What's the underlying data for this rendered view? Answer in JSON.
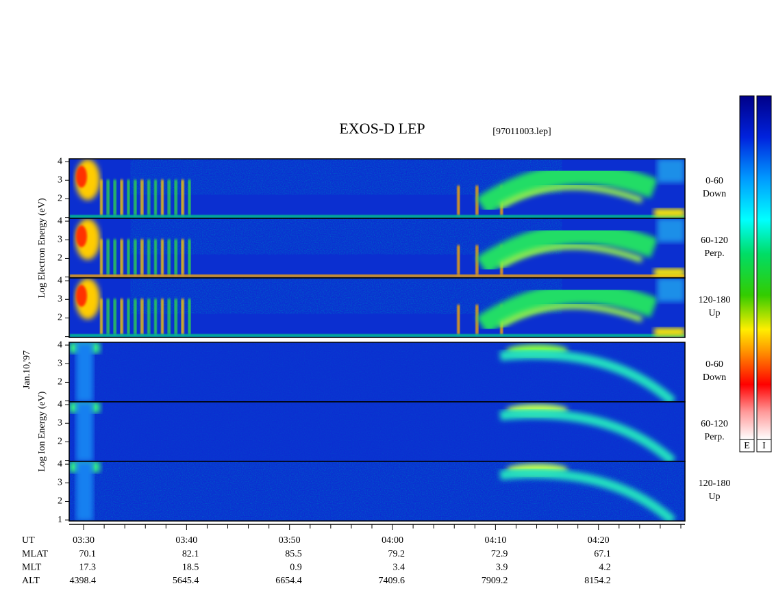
{
  "chart_data": {
    "type": "spectrogram",
    "title": "EXOS-D LEP",
    "file": "[97011003.lep]",
    "date": "Jan.10,'97",
    "xlabel": "UT",
    "xlim": [
      208.6,
      268.4
    ],
    "xticks": [
      {
        "value": 210,
        "label": "03:30"
      },
      {
        "value": 220,
        "label": "03:40"
      },
      {
        "value": 230,
        "label": "03:50"
      },
      {
        "value": 240,
        "label": "04:00"
      },
      {
        "value": 250,
        "label": "04:10"
      },
      {
        "value": 260,
        "label": "04:20"
      }
    ],
    "xminorticks": [
      212,
      214,
      216,
      218,
      222,
      224,
      226,
      228,
      232,
      234,
      236,
      238,
      242,
      244,
      246,
      248,
      252,
      254,
      256,
      258,
      262,
      264,
      266,
      268
    ],
    "ylim": [
      0.95,
      4.15
    ],
    "yminorticks": [
      1
    ],
    "groups": [
      {
        "ylabel": "Log Electron Energy (eV)",
        "kind": "electron",
        "panels": [
          {
            "angle": "0-60",
            "direction": "Down",
            "yticks": [
              2,
              3,
              4
            ]
          },
          {
            "angle": "60-120",
            "direction": "Perp.",
            "yticks": [
              2,
              3,
              4
            ]
          },
          {
            "angle": "120-180",
            "direction": "Up",
            "yticks": [
              2,
              3,
              4
            ]
          }
        ]
      },
      {
        "ylabel": "Log Ion Energy (eV)",
        "kind": "ion",
        "panels": [
          {
            "angle": "0-60",
            "direction": "Down",
            "yticks": [
              2,
              3,
              4
            ]
          },
          {
            "angle": "60-120",
            "direction": "Perp.",
            "yticks": [
              2,
              3,
              4
            ]
          },
          {
            "angle": "120-180",
            "direction": "Up",
            "yticks": [
              1,
              2,
              3,
              4
            ]
          }
        ]
      }
    ],
    "ephemeris": [
      {
        "name": "MLAT",
        "values": [
          70.1,
          82.1,
          85.5,
          79.2,
          72.9,
          67.1
        ]
      },
      {
        "name": "MLT",
        "values": [
          17.3,
          18.5,
          0.9,
          3.4,
          3.9,
          4.2
        ]
      },
      {
        "name": "ALT",
        "values": [
          4398.4,
          5645.4,
          6654.4,
          7409.6,
          7909.2,
          8154.2
        ]
      }
    ],
    "colorbars": [
      "E",
      "I"
    ]
  }
}
